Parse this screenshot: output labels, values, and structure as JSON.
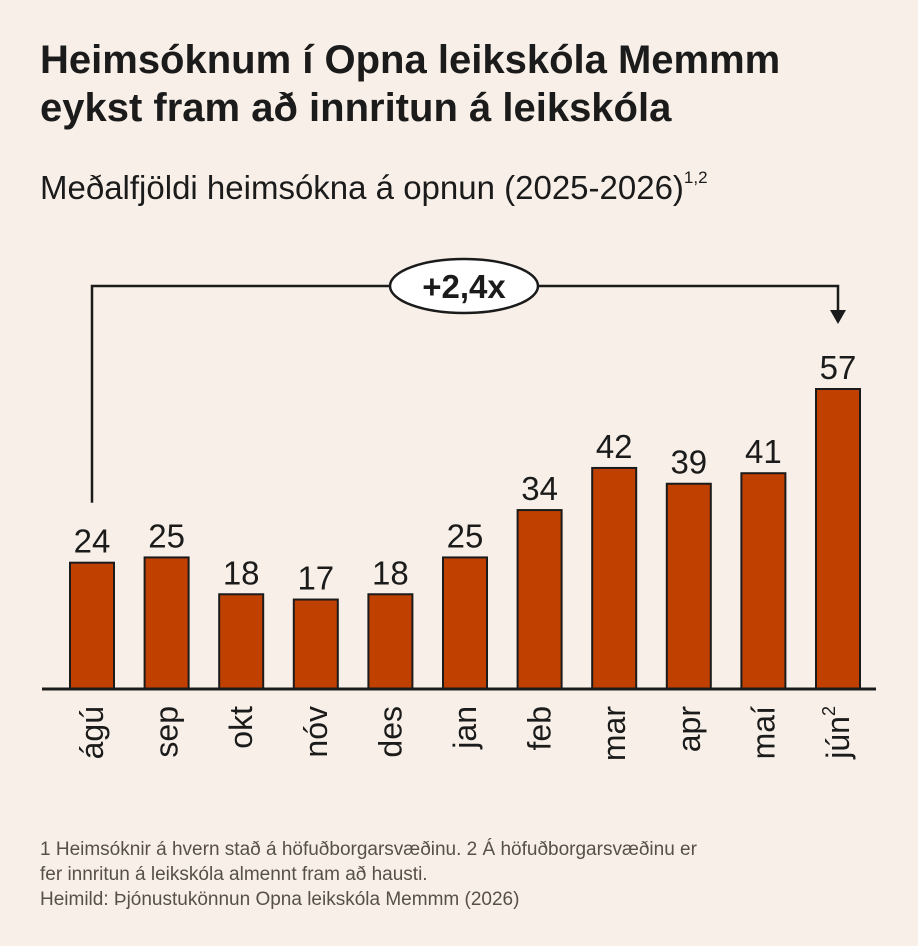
{
  "title_line1": "Heimsóknum í Opna leikskóla Memmm",
  "title_line2": "eykst fram að innritun á leikskóla",
  "subtitle": "Meðalfjöldi heimsókna á opnun (2025-2026)",
  "subtitle_sup": "1,2",
  "annotation": "+2,4x",
  "footnotes": {
    "line1": "1 Heimsóknir á hvern stað á höfuðborgarsvæðinu. 2 Á höfuðborgarsvæðinu er",
    "line2": "fer innritun á leikskóla almennt fram að hausti.",
    "line3": "Heimild: Þjónustukönnun Opna leikskóla Memmm (2026)"
  },
  "colors": {
    "bar": "#c04000",
    "background": "#f8f0e8",
    "text": "#1b1b1b"
  },
  "chart_data": {
    "type": "bar",
    "categories": [
      "ágú",
      "sep",
      "okt",
      "nóv",
      "des",
      "jan",
      "feb",
      "mar",
      "apr",
      "maí",
      "jún"
    ],
    "category_superscripts": [
      "",
      "",
      "",
      "",
      "",
      "",
      "",
      "",
      "",
      "",
      "2"
    ],
    "values": [
      24,
      25,
      18,
      17,
      18,
      25,
      34,
      42,
      39,
      41,
      57
    ],
    "ylim": [
      0,
      57
    ],
    "grid": false,
    "legend": "none"
  }
}
